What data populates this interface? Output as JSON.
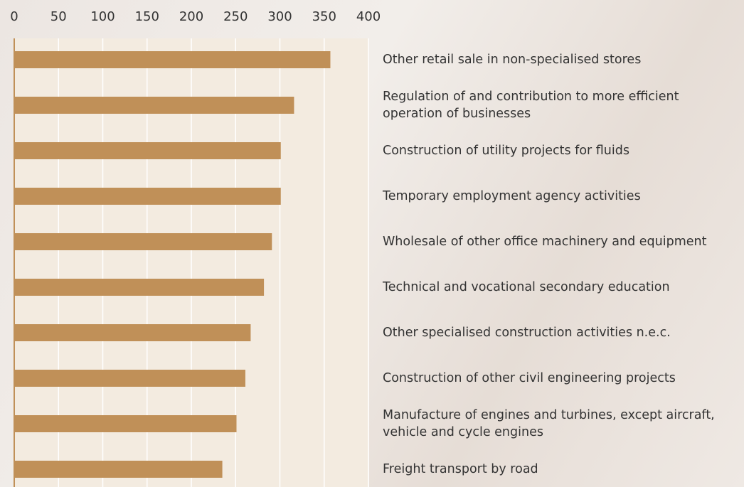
{
  "chart_data": {
    "type": "bar",
    "orientation": "horizontal",
    "categories": [
      "Other retail sale in non-specialised stores",
      "Regulation of and contribution to more efficient operation of businesses",
      "Construction of utility projects for fluids",
      "Temporary employment agency activities",
      "Wholesale of other office machinery and equipment",
      "Technical and vocational secondary education",
      "Other specialised construction activities n.e.c.",
      "Construction of other civil engineering projects",
      "Manufacture of engines and turbines, except aircraft, vehicle and cycle engines",
      "Freight transport by road"
    ],
    "values": [
      357,
      316,
      301,
      301,
      291,
      282,
      267,
      261,
      251,
      235
    ],
    "color": "#c09058",
    "xlim": [
      0,
      400
    ],
    "xticks": [
      0,
      50,
      100,
      150,
      200,
      250,
      300,
      350,
      400
    ],
    "grid": true
  }
}
